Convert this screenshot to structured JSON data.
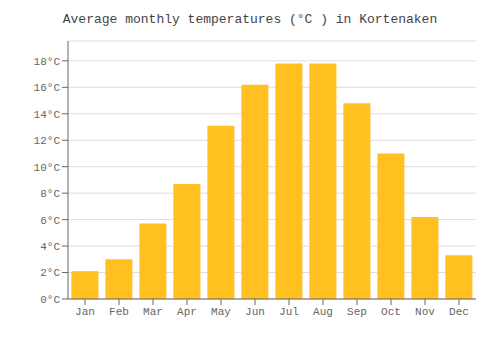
{
  "chart_data": {
    "type": "bar",
    "title": "Average monthly temperatures (°C ) in Kortenaken",
    "categories": [
      "Jan",
      "Feb",
      "Mar",
      "Apr",
      "May",
      "Jun",
      "Jul",
      "Aug",
      "Sep",
      "Oct",
      "Nov",
      "Dec"
    ],
    "values": [
      2.1,
      3.0,
      5.7,
      8.7,
      13.1,
      16.2,
      17.8,
      17.8,
      14.8,
      11.0,
      6.2,
      3.3
    ],
    "color": "#FFC020",
    "ylim": [
      0,
      19.5
    ],
    "yticks": [
      {
        "value": 0,
        "label": "0°C"
      },
      {
        "value": 2,
        "label": "2°C"
      },
      {
        "value": 4,
        "label": "4°C"
      },
      {
        "value": 6,
        "label": "6°C"
      },
      {
        "value": 8,
        "label": "8°C"
      },
      {
        "value": 10,
        "label": "10°C"
      },
      {
        "value": 12,
        "label": "12°C"
      },
      {
        "value": 14,
        "label": "14°C"
      },
      {
        "value": 16,
        "label": "16°C"
      },
      {
        "value": 18,
        "label": "18°C"
      }
    ],
    "grid": true
  }
}
